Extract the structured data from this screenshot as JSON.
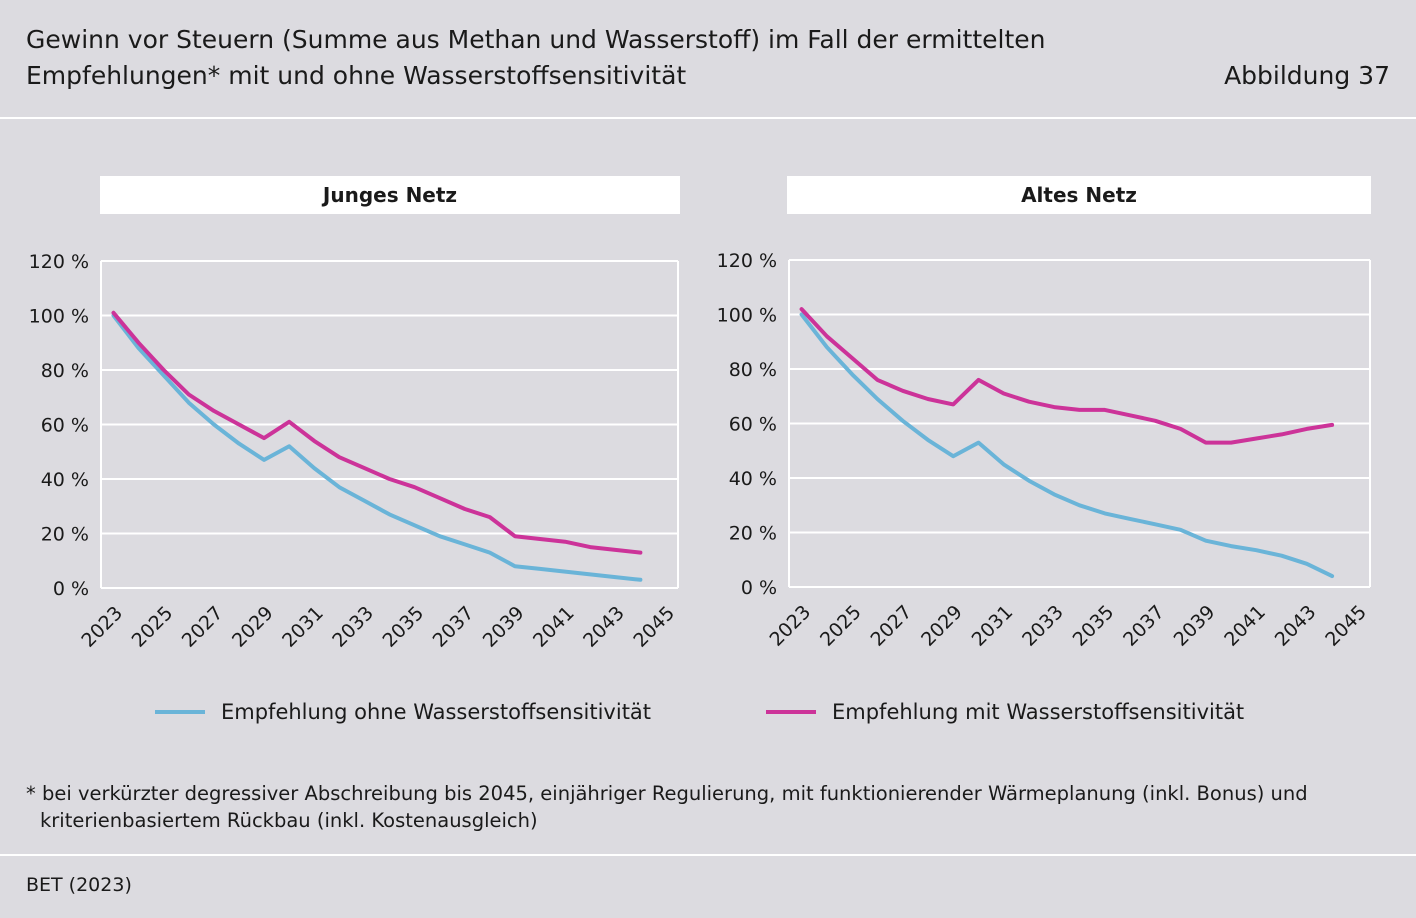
{
  "title_line1": "Gewinn vor Steuern (Summe aus Methan und Wasserstoff) im Fall der ermittelten",
  "title_line2": "Empfehlungen* mit und ohne Wasserstoffsensitivität",
  "figure_label": "Abbildung 37",
  "colors": {
    "ohne": "#6ab4d8",
    "mit": "#cc3399",
    "background": "#dcdbe0",
    "grid": "#ffffff"
  },
  "legend": {
    "ohne": "Empfehlung ohne Wasserstoffsensitivität",
    "mit": "Empfehlung mit Wasserstoffsensitivität"
  },
  "footnote_line1": "* bei verkürzter degressiver Abschreibung bis 2045, einjähriger Regulierung, mit funktionierender Wärmeplanung (inkl. Bonus) und",
  "footnote_line2": "kriterienbasiertem Rückbau (inkl. Kostenausgleich)",
  "source": "BET (2023)",
  "chart_data": [
    {
      "type": "line",
      "title": "Junges Netz",
      "x": [
        2023,
        2024,
        2025,
        2026,
        2027,
        2028,
        2029,
        2030,
        2031,
        2032,
        2033,
        2034,
        2035,
        2036,
        2037,
        2038,
        2039,
        2040,
        2041,
        2042,
        2043,
        2044
      ],
      "x_tick_labels": [
        "2023",
        "2025",
        "2027",
        "2029",
        "2031",
        "2033",
        "2035",
        "2037",
        "2039",
        "2041",
        "2043",
        "2045"
      ],
      "y_tick_labels": [
        "0 %",
        "20 %",
        "40 %",
        "60 %",
        "80 %",
        "100 %",
        "120 %"
      ],
      "ylim": [
        0,
        120
      ],
      "grid": true,
      "series": [
        {
          "name": "Empfehlung ohne Wasserstoffsensitivität",
          "key": "ohne",
          "values": [
            100,
            88,
            78,
            68,
            60,
            53,
            47,
            52,
            44,
            37,
            32,
            27,
            23,
            19,
            16,
            13,
            8,
            7,
            6,
            5,
            4,
            3
          ]
        },
        {
          "name": "Empfehlung mit Wasserstoffsensitivität",
          "key": "mit",
          "values": [
            101,
            90,
            80,
            71,
            65,
            60,
            55,
            61,
            54,
            48,
            44,
            40,
            37,
            33,
            29,
            26,
            19,
            18,
            17,
            15,
            14,
            13
          ]
        }
      ]
    },
    {
      "type": "line",
      "title": "Altes Netz",
      "x": [
        2023,
        2024,
        2025,
        2026,
        2027,
        2028,
        2029,
        2030,
        2031,
        2032,
        2033,
        2034,
        2035,
        2036,
        2037,
        2038,
        2039,
        2040,
        2041,
        2042,
        2043,
        2044
      ],
      "x_tick_labels": [
        "2023",
        "2025",
        "2027",
        "2029",
        "2031",
        "2033",
        "2035",
        "2037",
        "2039",
        "2041",
        "2043",
        "2045"
      ],
      "y_tick_labels": [
        "0 %",
        "20 %",
        "40 %",
        "60 %",
        "80 %",
        "100 %",
        "120 %"
      ],
      "ylim": [
        0,
        120
      ],
      "grid": true,
      "series": [
        {
          "name": "Empfehlung ohne Wasserstoffsensitivität",
          "key": "ohne",
          "values": [
            100,
            88,
            78,
            69,
            61,
            54,
            48,
            53,
            45,
            39,
            34,
            30,
            27,
            25,
            23,
            21,
            17,
            15,
            13.5,
            11.5,
            8.5,
            4
          ]
        },
        {
          "name": "Empfehlung mit Wasserstoffsensitivität",
          "key": "mit",
          "values": [
            102,
            92,
            84,
            76,
            72,
            69,
            67,
            76,
            71,
            68,
            66,
            65,
            65,
            63,
            61,
            58,
            53,
            53,
            54.5,
            56,
            58,
            59.5
          ]
        }
      ]
    }
  ]
}
